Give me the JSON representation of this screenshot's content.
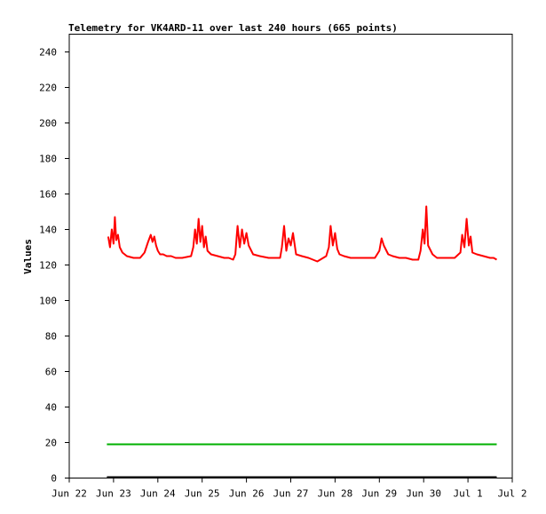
{
  "chart_data": {
    "type": "line",
    "title": "Telemetry for VK4ARD-11 over last 240 hours (665 points)",
    "xlabel": "",
    "ylabel": "Values",
    "ylim": [
      0,
      250
    ],
    "xlim": [
      "Jun 22",
      "Jul 2"
    ],
    "yticks": [
      0,
      20,
      40,
      60,
      80,
      100,
      120,
      140,
      160,
      180,
      200,
      220,
      240
    ],
    "xticks": [
      "Jun 22",
      "Jun 23",
      "Jun 24",
      "Jun 25",
      "Jun 26",
      "Jun 27",
      "Jun 28",
      "Jun 29",
      "Jun 30",
      "Jul 1",
      "Jul 2"
    ],
    "grid": false,
    "legend": "none",
    "series": [
      {
        "color": "#ff0000",
        "x": [
          0.88,
          0.92,
          0.96,
          1.0,
          1.03,
          1.06,
          1.1,
          1.14,
          1.2,
          1.3,
          1.45,
          1.6,
          1.7,
          1.78,
          1.84,
          1.88,
          1.92,
          1.96,
          2.0,
          2.05,
          2.12,
          2.2,
          2.3,
          2.4,
          2.55,
          2.75,
          2.8,
          2.84,
          2.88,
          2.92,
          2.96,
          3.0,
          3.04,
          3.08,
          3.12,
          3.2,
          3.35,
          3.5,
          3.6,
          3.7,
          3.75,
          3.78,
          3.8,
          3.85,
          3.9,
          3.95,
          4.0,
          4.05,
          4.15,
          4.3,
          4.5,
          4.7,
          4.76,
          4.8,
          4.85,
          4.9,
          4.95,
          5.0,
          5.05,
          5.12,
          5.25,
          5.4,
          5.6,
          5.8,
          5.86,
          5.9,
          5.95,
          6.0,
          6.05,
          6.1,
          6.2,
          6.35,
          6.5,
          6.7,
          6.9,
          7.0,
          7.05,
          7.1,
          7.2,
          7.3,
          7.45,
          7.6,
          7.75,
          7.88,
          7.93,
          7.98,
          8.02,
          8.06,
          8.1,
          8.2,
          8.3,
          8.5,
          8.7,
          8.83,
          8.87,
          8.92,
          8.97,
          9.02,
          9.06,
          9.1,
          9.2,
          9.35,
          9.5,
          9.58,
          9.65
        ],
        "values": [
          136,
          130,
          140,
          132,
          147,
          134,
          137,
          130,
          127,
          125,
          124,
          124,
          127,
          133,
          137,
          133,
          136,
          131,
          128,
          126,
          126,
          125,
          125,
          124,
          124,
          125,
          130,
          140,
          132,
          146,
          133,
          142,
          130,
          136,
          128,
          126,
          125,
          124,
          124,
          123,
          126,
          136,
          142,
          130,
          140,
          132,
          138,
          131,
          126,
          125,
          124,
          124,
          124,
          130,
          142,
          128,
          135,
          131,
          138,
          126,
          125,
          124,
          122,
          125,
          130,
          142,
          131,
          138,
          129,
          126,
          125,
          124,
          124,
          124,
          124,
          128,
          135,
          131,
          126,
          125,
          124,
          124,
          123,
          123,
          128,
          140,
          132,
          153,
          131,
          126,
          124,
          124,
          124,
          127,
          137,
          130,
          146,
          131,
          136,
          127,
          126,
          125,
          124,
          124,
          123
        ]
      },
      {
        "color": "#00b000",
        "x": [
          0.85,
          1.5,
          2.0,
          2.5,
          3.0,
          3.5,
          4.0,
          4.5,
          5.0,
          5.5,
          6.0,
          6.5,
          7.0,
          7.5,
          8.0,
          8.5,
          9.0,
          9.5,
          9.65
        ],
        "values": [
          19,
          19,
          19,
          19,
          19,
          19,
          19,
          19,
          19,
          19,
          19,
          19,
          19,
          19,
          19,
          19,
          19,
          19,
          19
        ]
      },
      {
        "color": "#000000",
        "x": [
          0.85,
          9.65
        ],
        "values": [
          0.5,
          0.5
        ]
      }
    ]
  }
}
